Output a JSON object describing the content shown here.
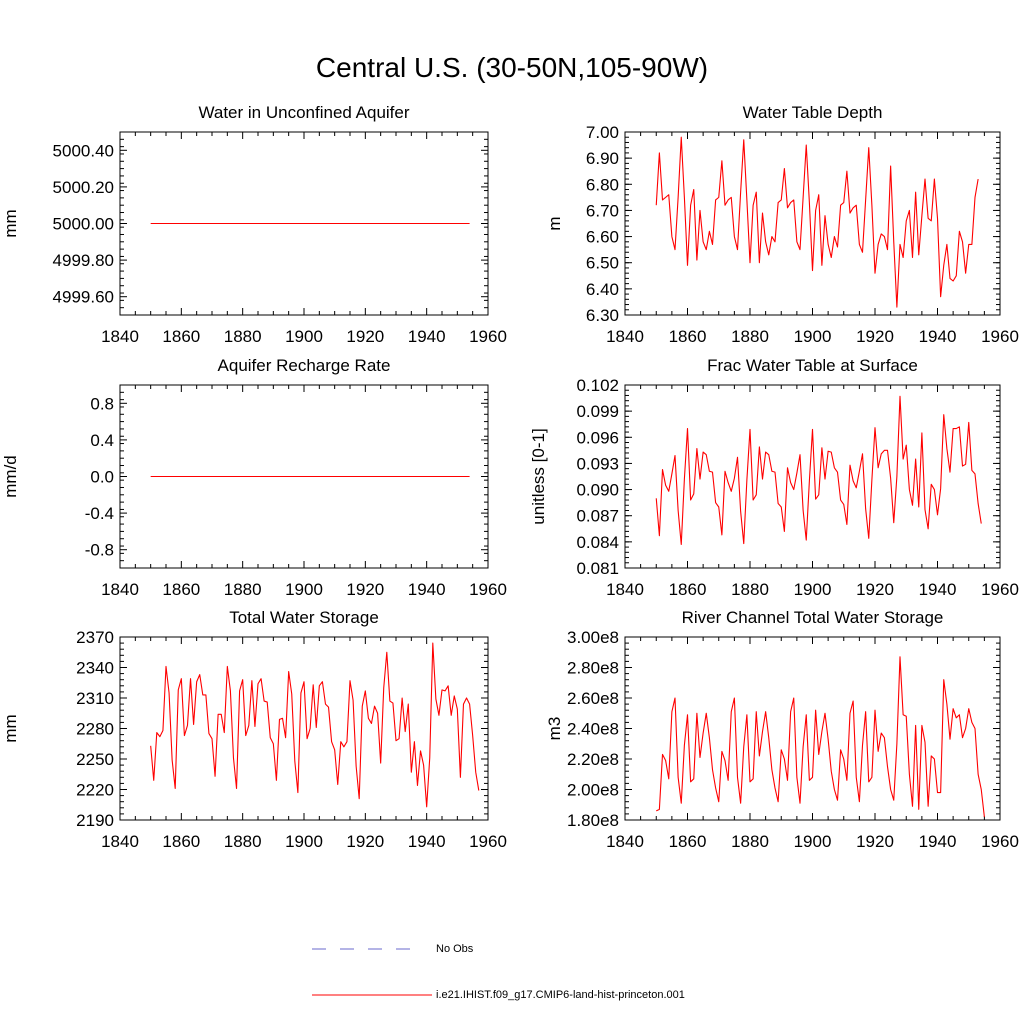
{
  "title": "Central U.S. (30-50N,105-90W)",
  "legend": {
    "items": [
      {
        "label": "No Obs",
        "color": "#6a6acd",
        "dash": true
      },
      {
        "label": "i.e21.IHIST.f09_g17.CMIP6-land-hist-princeton.001",
        "color": "#ff0000",
        "dash": false
      }
    ]
  },
  "chart_data": [
    {
      "type": "line",
      "title": "Water in Unconfined Aquifer",
      "ylabel": "mm",
      "xlim": [
        1840,
        1960
      ],
      "ylim": [
        4999.5,
        5000.5
      ],
      "xticks": [
        "1840",
        "1860",
        "1880",
        "1900",
        "1920",
        "1940",
        "1960"
      ],
      "yticks": [
        "4999.60",
        "4999.80",
        "5000.00",
        "5000.20",
        "5000.40"
      ],
      "ytick_values": [
        4999.6,
        4999.8,
        5000.0,
        5000.2,
        5000.4
      ],
      "x_start": 1850,
      "series": [
        {
          "color": "#ff0000",
          "values": [
            5000,
            5000,
            5000,
            5000,
            5000,
            5000,
            5000,
            5000,
            5000,
            5000,
            5000,
            5000,
            5000,
            5000,
            5000,
            5000,
            5000,
            5000,
            5000,
            5000,
            5000,
            5000,
            5000,
            5000,
            5000,
            5000,
            5000,
            5000,
            5000,
            5000,
            5000,
            5000,
            5000,
            5000,
            5000,
            5000,
            5000,
            5000,
            5000,
            5000,
            5000,
            5000,
            5000,
            5000,
            5000,
            5000,
            5000,
            5000,
            5000,
            5000,
            5000,
            5000,
            5000,
            5000,
            5000,
            5000,
            5000,
            5000,
            5000,
            5000,
            5000,
            5000,
            5000,
            5000,
            5000,
            5000,
            5000,
            5000,
            5000,
            5000,
            5000,
            5000,
            5000,
            5000,
            5000,
            5000,
            5000,
            5000,
            5000,
            5000,
            5000,
            5000,
            5000,
            5000,
            5000,
            5000,
            5000,
            5000,
            5000,
            5000,
            5000,
            5000,
            5000,
            5000,
            5000,
            5000,
            5000,
            5000,
            5000,
            5000,
            5000,
            5000,
            5000,
            5000,
            5000
          ]
        }
      ]
    },
    {
      "type": "line",
      "title": "Water Table Depth",
      "ylabel": "m",
      "xlim": [
        1840,
        1960
      ],
      "ylim": [
        6.3,
        7.0
      ],
      "xticks": [
        "1840",
        "1860",
        "1880",
        "1900",
        "1920",
        "1940",
        "1960"
      ],
      "yticks": [
        "6.30",
        "6.40",
        "6.50",
        "6.60",
        "6.70",
        "6.80",
        "6.90",
        "7.00"
      ],
      "ytick_values": [
        6.3,
        6.4,
        6.5,
        6.6,
        6.7,
        6.8,
        6.9,
        7.0
      ],
      "x_start": 1850,
      "series": [
        {
          "color": "#ff0000",
          "values": [
            6.72,
            6.92,
            6.74,
            6.75,
            6.76,
            6.6,
            6.55,
            6.75,
            6.98,
            6.75,
            6.49,
            6.72,
            6.78,
            6.51,
            6.7,
            6.58,
            6.55,
            6.62,
            6.57,
            6.74,
            6.75,
            6.89,
            6.72,
            6.74,
            6.75,
            6.6,
            6.55,
            6.77,
            6.97,
            6.74,
            6.5,
            6.72,
            6.77,
            6.5,
            6.69,
            6.58,
            6.53,
            6.6,
            6.58,
            6.73,
            6.74,
            6.86,
            6.71,
            6.73,
            6.74,
            6.58,
            6.55,
            6.75,
            6.95,
            6.73,
            6.47,
            6.7,
            6.76,
            6.49,
            6.68,
            6.57,
            6.52,
            6.6,
            6.56,
            6.72,
            6.73,
            6.85,
            6.69,
            6.71,
            6.72,
            6.57,
            6.54,
            6.74,
            6.94,
            6.72,
            6.46,
            6.57,
            6.61,
            6.6,
            6.55,
            6.87,
            6.58,
            6.33,
            6.57,
            6.52,
            6.66,
            6.7,
            6.52,
            6.77,
            6.53,
            6.68,
            6.82,
            6.67,
            6.66,
            6.82,
            6.67,
            6.37,
            6.49,
            6.57,
            6.44,
            6.43,
            6.45,
            6.62,
            6.58,
            6.46,
            6.57,
            6.57,
            6.75,
            6.82
          ]
        }
      ]
    },
    {
      "type": "line",
      "title": "Aquifer Recharge Rate",
      "ylabel": "mm/d",
      "xlim": [
        1840,
        1960
      ],
      "ylim": [
        -1.0,
        1.0
      ],
      "xticks": [
        "1840",
        "1860",
        "1880",
        "1900",
        "1920",
        "1940",
        "1960"
      ],
      "yticks": [
        "-0.8",
        "-0.4",
        "0.0",
        "0.4",
        "0.8"
      ],
      "ytick_values": [
        -0.8,
        -0.4,
        0.0,
        0.4,
        0.8
      ],
      "x_start": 1850,
      "series": [
        {
          "color": "#ff0000",
          "values": [
            0,
            0,
            0,
            0,
            0,
            0,
            0,
            0,
            0,
            0,
            0,
            0,
            0,
            0,
            0,
            0,
            0,
            0,
            0,
            0,
            0,
            0,
            0,
            0,
            0,
            0,
            0,
            0,
            0,
            0,
            0,
            0,
            0,
            0,
            0,
            0,
            0,
            0,
            0,
            0,
            0,
            0,
            0,
            0,
            0,
            0,
            0,
            0,
            0,
            0,
            0,
            0,
            0,
            0,
            0,
            0,
            0,
            0,
            0,
            0,
            0,
            0,
            0,
            0,
            0,
            0,
            0,
            0,
            0,
            0,
            0,
            0,
            0,
            0,
            0,
            0,
            0,
            0,
            0,
            0,
            0,
            0,
            0,
            0,
            0,
            0,
            0,
            0,
            0,
            0,
            0,
            0,
            0,
            0,
            0,
            0,
            0,
            0,
            0,
            0,
            0,
            0,
            0,
            0,
            0
          ]
        }
      ]
    },
    {
      "type": "line",
      "title": "Frac Water Table at Surface",
      "ylabel": "unitless [0-1]",
      "xlim": [
        1840,
        1960
      ],
      "ylim": [
        0.081,
        0.102
      ],
      "xticks": [
        "1840",
        "1860",
        "1880",
        "1900",
        "1920",
        "1940",
        "1960"
      ],
      "yticks": [
        "0.081",
        "0.084",
        "0.087",
        "0.090",
        "0.093",
        "0.096",
        "0.099",
        "0.102"
      ],
      "ytick_values": [
        0.081,
        0.084,
        0.087,
        0.09,
        0.093,
        0.096,
        0.099,
        0.102
      ],
      "x_start": 1850,
      "series": [
        {
          "color": "#ff0000",
          "values": [
            0.089,
            0.0847,
            0.0923,
            0.0905,
            0.0898,
            0.0918,
            0.0939,
            0.0876,
            0.0837,
            0.0912,
            0.097,
            0.0888,
            0.0895,
            0.0947,
            0.0912,
            0.0943,
            0.094,
            0.0921,
            0.092,
            0.0885,
            0.088,
            0.0848,
            0.0921,
            0.0908,
            0.0898,
            0.0913,
            0.0937,
            0.0875,
            0.0838,
            0.0911,
            0.0969,
            0.0888,
            0.0894,
            0.0949,
            0.0912,
            0.0943,
            0.094,
            0.0921,
            0.092,
            0.0884,
            0.088,
            0.0852,
            0.0925,
            0.0908,
            0.09,
            0.0919,
            0.094,
            0.0876,
            0.0842,
            0.091,
            0.0969,
            0.0889,
            0.0894,
            0.0948,
            0.0912,
            0.0944,
            0.0943,
            0.0925,
            0.092,
            0.0888,
            0.0883,
            0.086,
            0.0928,
            0.091,
            0.0902,
            0.0921,
            0.0941,
            0.0878,
            0.0844,
            0.0911,
            0.0971,
            0.0925,
            0.0941,
            0.0945,
            0.0945,
            0.0913,
            0.0862,
            0.0915,
            0.1007,
            0.0935,
            0.0951,
            0.09,
            0.0882,
            0.0935,
            0.088,
            0.0965,
            0.0877,
            0.0855,
            0.0906,
            0.09,
            0.0871,
            0.0901,
            0.0986,
            0.0947,
            0.092,
            0.097,
            0.097,
            0.0972,
            0.0927,
            0.0929,
            0.0977,
            0.0922,
            0.0918,
            0.0884,
            0.0861
          ]
        }
      ]
    },
    {
      "type": "line",
      "title": "Total Water Storage",
      "ylabel": "mm",
      "xlim": [
        1840,
        1960
      ],
      "ylim": [
        2190,
        2370
      ],
      "xticks": [
        "1840",
        "1860",
        "1880",
        "1900",
        "1920",
        "1940",
        "1960"
      ],
      "yticks": [
        "2190",
        "2220",
        "2250",
        "2280",
        "2310",
        "2340",
        "2370"
      ],
      "ytick_values": [
        2190,
        2220,
        2250,
        2280,
        2310,
        2340,
        2370
      ],
      "x_start": 1850,
      "series": [
        {
          "color": "#ff0000",
          "values": [
            2263,
            2229,
            2276,
            2272,
            2278,
            2341,
            2315,
            2249,
            2221,
            2318,
            2329,
            2273,
            2283,
            2329,
            2284,
            2326,
            2333,
            2313,
            2313,
            2275,
            2270,
            2233,
            2294,
            2294,
            2276,
            2341,
            2317,
            2251,
            2221,
            2317,
            2328,
            2273,
            2283,
            2327,
            2282,
            2324,
            2329,
            2307,
            2306,
            2271,
            2265,
            2229,
            2289,
            2290,
            2271,
            2336,
            2314,
            2248,
            2217,
            2315,
            2326,
            2270,
            2280,
            2323,
            2281,
            2322,
            2326,
            2304,
            2301,
            2267,
            2259,
            2225,
            2267,
            2262,
            2267,
            2327,
            2308,
            2243,
            2211,
            2302,
            2317,
            2290,
            2285,
            2302,
            2295,
            2246,
            2320,
            2355,
            2307,
            2305,
            2268,
            2270,
            2310,
            2277,
            2304,
            2237,
            2267,
            2224,
            2258,
            2244,
            2203,
            2251,
            2364,
            2309,
            2293,
            2318,
            2317,
            2322,
            2293,
            2312,
            2299,
            2232,
            2304,
            2310,
            2304,
            2273,
            2237,
            2219
          ]
        }
      ]
    },
    {
      "type": "line",
      "title": "River Channel Total Water Storage",
      "ylabel": "m3",
      "xlim": [
        1840,
        1960
      ],
      "ylim": [
        180000000.0,
        300000000.0
      ],
      "xticks": [
        "1840",
        "1860",
        "1880",
        "1900",
        "1920",
        "1940",
        "1960"
      ],
      "yticks": [
        "1.80e8",
        "2.00e8",
        "2.20e8",
        "2.40e8",
        "2.60e8",
        "2.80e8",
        "3.00e8"
      ],
      "ytick_values": [
        180000000.0,
        200000000.0,
        220000000.0,
        240000000.0,
        260000000.0,
        280000000.0,
        300000000.0
      ],
      "x_start": 1850,
      "series": [
        {
          "color": "#ff0000",
          "values": [
            186000000.0,
            187000000.0,
            223000000.0,
            219000000.0,
            207000000.0,
            251000000.0,
            260000000.0,
            208000000.0,
            191000000.0,
            229000000.0,
            249000000.0,
            205000000.0,
            207000000.0,
            250000000.0,
            221000000.0,
            237000000.0,
            250000000.0,
            234000000.0,
            213000000.0,
            201000000.0,
            192000000.0,
            225000000.0,
            219000000.0,
            206000000.0,
            251000000.0,
            260000000.0,
            208000000.0,
            191000000.0,
            228000000.0,
            249000000.0,
            205000000.0,
            207000000.0,
            251000000.0,
            222000000.0,
            238000000.0,
            251000000.0,
            234000000.0,
            213000000.0,
            201000000.0,
            192000000.0,
            226000000.0,
            220000000.0,
            206000000.0,
            251000000.0,
            260000000.0,
            208000000.0,
            191000000.0,
            228000000.0,
            249000000.0,
            206000000.0,
            208000000.0,
            252000000.0,
            223000000.0,
            238000000.0,
            250000000.0,
            233000000.0,
            212000000.0,
            200000000.0,
            193000000.0,
            226000000.0,
            220000000.0,
            206000000.0,
            250000000.0,
            258000000.0,
            208000000.0,
            192000000.0,
            229000000.0,
            251000000.0,
            205000000.0,
            208000000.0,
            252000000.0,
            225000000.0,
            237000000.0,
            234000000.0,
            215000000.0,
            200000000.0,
            193000000.0,
            230000000.0,
            287000000.0,
            249000000.0,
            248000000.0,
            210000000.0,
            189000000.0,
            242000000.0,
            187000000.0,
            242000000.0,
            231000000.0,
            189000000.0,
            222000000.0,
            220000000.0,
            198000000.0,
            198000000.0,
            272000000.0,
            256000000.0,
            233000000.0,
            253000000.0,
            247000000.0,
            249000000.0,
            234000000.0,
            240000000.0,
            253000000.0,
            244000000.0,
            240000000.0,
            210000000.0,
            200000000.0,
            182000000.0
          ]
        }
      ]
    }
  ]
}
